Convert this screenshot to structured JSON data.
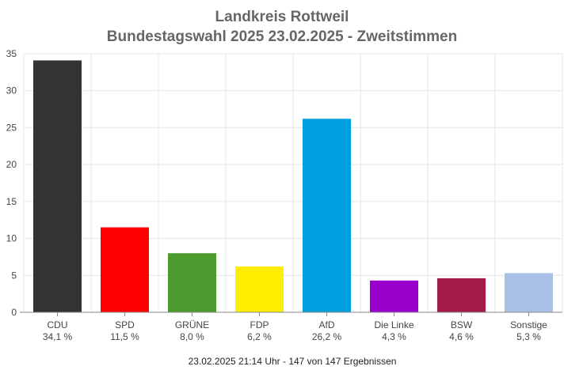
{
  "chart_data": {
    "type": "bar",
    "title": "Landkreis Rottweil",
    "subtitle": "Bundestagswahl 2025 23.02.2025  - Zweitstimmen",
    "categories": [
      "CDU",
      "SPD",
      "GRÜNE",
      "FDP",
      "AfD",
      "Die Linke",
      "BSW",
      "Sonstige"
    ],
    "values": [
      34.1,
      11.5,
      8.0,
      6.2,
      26.2,
      4.3,
      4.6,
      5.3
    ],
    "value_labels": [
      "34,1 %",
      "11,5 %",
      "8,0 %",
      "6,2 %",
      "26,2 %",
      "4,3 %",
      "4,6 %",
      "5,3 %"
    ],
    "colors": [
      "#333333",
      "#ff0000",
      "#4a9a2e",
      "#ffee00",
      "#00a0e0",
      "#9900cc",
      "#a31c48",
      "#aabfe6"
    ],
    "ylim": [
      0,
      35
    ],
    "yticks": [
      "0",
      "5",
      "10",
      "15",
      "20",
      "25",
      "30",
      "35"
    ],
    "grid": true,
    "xlabel": "",
    "ylabel": "",
    "footer": "23.02.2025 21:14 Uhr - 147 von 147 Ergebnissen"
  }
}
